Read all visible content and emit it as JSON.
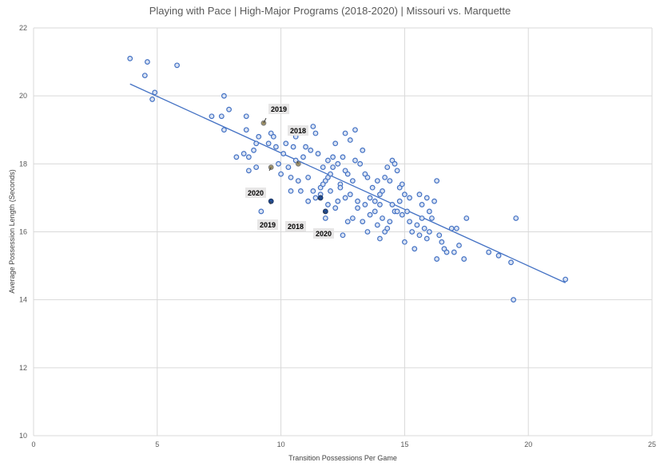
{
  "chart_data": {
    "type": "scatter",
    "title": "Playing with Pace | High-Major Programs (2018-2020) | Missouri vs. Marquette",
    "xlabel": "Transition Possessions Per Game",
    "ylabel": "Average Possession Length (Seconds)",
    "xlim": [
      0,
      25
    ],
    "ylim": [
      10,
      22
    ],
    "x_ticks": [
      "0",
      "5",
      "10",
      "15",
      "20",
      "25"
    ],
    "y_ticks": [
      "10",
      "12",
      "14",
      "16",
      "18",
      "20",
      "22"
    ],
    "grid": "vertical and horizontal",
    "trendline": {
      "x": [
        3.9,
        21.5
      ],
      "y": [
        20.35,
        14.5
      ]
    },
    "series": [
      {
        "name": "High-Major Programs",
        "points": [
          [
            3.9,
            21.1
          ],
          [
            4.6,
            21.0
          ],
          [
            4.5,
            20.6
          ],
          [
            5.8,
            20.9
          ],
          [
            4.9,
            20.1
          ],
          [
            4.8,
            19.9
          ],
          [
            7.7,
            20.0
          ],
          [
            7.2,
            19.4
          ],
          [
            7.6,
            19.4
          ],
          [
            7.9,
            19.6
          ],
          [
            8.6,
            19.4
          ],
          [
            7.7,
            19.0
          ],
          [
            8.6,
            19.0
          ],
          [
            9.1,
            18.8
          ],
          [
            9.0,
            18.6
          ],
          [
            8.7,
            18.2
          ],
          [
            8.5,
            18.3
          ],
          [
            8.2,
            18.2
          ],
          [
            8.9,
            18.4
          ],
          [
            8.7,
            17.8
          ],
          [
            9.0,
            17.9
          ],
          [
            9.6,
            18.9
          ],
          [
            9.7,
            18.8
          ],
          [
            9.5,
            18.6
          ],
          [
            9.8,
            18.5
          ],
          [
            10.2,
            18.6
          ],
          [
            10.5,
            18.5
          ],
          [
            10.6,
            18.8
          ],
          [
            10.1,
            18.3
          ],
          [
            9.9,
            18.0
          ],
          [
            10.3,
            17.9
          ],
          [
            10.0,
            17.7
          ],
          [
            10.6,
            18.1
          ],
          [
            10.4,
            17.6
          ],
          [
            10.9,
            18.2
          ],
          [
            11.0,
            18.5
          ],
          [
            11.2,
            18.4
          ],
          [
            11.5,
            18.3
          ],
          [
            11.7,
            17.9
          ],
          [
            11.4,
            18.9
          ],
          [
            11.3,
            19.1
          ],
          [
            11.9,
            18.1
          ],
          [
            12.1,
            18.2
          ],
          [
            12.3,
            18.0
          ],
          [
            12.0,
            17.7
          ],
          [
            11.8,
            17.5
          ],
          [
            11.6,
            17.3
          ],
          [
            11.1,
            17.6
          ],
          [
            11.3,
            17.2
          ],
          [
            11.4,
            17.0
          ],
          [
            11.6,
            17.1
          ],
          [
            11.9,
            16.8
          ],
          [
            12.2,
            16.7
          ],
          [
            12.6,
            17.0
          ],
          [
            12.4,
            17.4
          ],
          [
            12.7,
            17.7
          ],
          [
            12.9,
            17.5
          ],
          [
            13.0,
            18.1
          ],
          [
            13.2,
            18.0
          ],
          [
            12.8,
            18.7
          ],
          [
            12.6,
            18.9
          ],
          [
            13.0,
            19.0
          ],
          [
            12.2,
            18.6
          ],
          [
            13.3,
            18.4
          ],
          [
            13.5,
            17.6
          ],
          [
            13.7,
            17.3
          ],
          [
            13.6,
            17.0
          ],
          [
            13.4,
            16.8
          ],
          [
            13.1,
            16.7
          ],
          [
            12.9,
            16.4
          ],
          [
            13.3,
            16.3
          ],
          [
            13.5,
            16.0
          ],
          [
            13.8,
            16.6
          ],
          [
            14.0,
            16.8
          ],
          [
            14.1,
            17.2
          ],
          [
            14.2,
            17.6
          ],
          [
            14.3,
            17.9
          ],
          [
            14.5,
            18.1
          ],
          [
            14.6,
            18.0
          ],
          [
            14.7,
            17.8
          ],
          [
            14.4,
            17.5
          ],
          [
            14.8,
            17.3
          ],
          [
            14.9,
            17.4
          ],
          [
            15.0,
            17.1
          ],
          [
            14.8,
            16.9
          ],
          [
            14.6,
            16.6
          ],
          [
            14.4,
            16.3
          ],
          [
            14.2,
            16.0
          ],
          [
            14.0,
            15.8
          ],
          [
            14.3,
            16.1
          ],
          [
            14.9,
            16.5
          ],
          [
            15.1,
            16.6
          ],
          [
            15.2,
            16.3
          ],
          [
            15.3,
            16.0
          ],
          [
            15.5,
            16.2
          ],
          [
            15.7,
            16.4
          ],
          [
            15.8,
            16.1
          ],
          [
            15.6,
            15.9
          ],
          [
            15.4,
            15.5
          ],
          [
            15.9,
            15.8
          ],
          [
            16.0,
            16.6
          ],
          [
            16.2,
            16.9
          ],
          [
            16.3,
            17.5
          ],
          [
            16.1,
            16.4
          ],
          [
            15.9,
            17.0
          ],
          [
            15.6,
            17.1
          ],
          [
            16.4,
            15.9
          ],
          [
            16.5,
            15.7
          ],
          [
            16.7,
            15.4
          ],
          [
            16.9,
            16.1
          ],
          [
            17.0,
            15.4
          ],
          [
            17.2,
            15.6
          ],
          [
            17.4,
            15.2
          ],
          [
            17.5,
            16.4
          ],
          [
            16.3,
            15.2
          ],
          [
            18.4,
            15.4
          ],
          [
            18.8,
            15.3
          ],
          [
            19.3,
            15.1
          ],
          [
            19.5,
            16.4
          ],
          [
            19.4,
            14.0
          ],
          [
            21.5,
            14.6
          ],
          [
            12.5,
            18.2
          ],
          [
            12.1,
            17.9
          ],
          [
            11.9,
            17.6
          ],
          [
            12.4,
            17.3
          ],
          [
            12.8,
            17.1
          ],
          [
            13.4,
            17.7
          ],
          [
            13.9,
            17.5
          ],
          [
            14.0,
            17.1
          ],
          [
            13.8,
            16.9
          ],
          [
            13.6,
            16.5
          ],
          [
            12.7,
            16.3
          ],
          [
            12.5,
            15.9
          ],
          [
            11.8,
            16.4
          ],
          [
            12.3,
            16.9
          ],
          [
            11.7,
            17.4
          ],
          [
            12.0,
            17.2
          ],
          [
            14.5,
            16.8
          ],
          [
            14.7,
            16.6
          ],
          [
            15.0,
            15.7
          ],
          [
            14.1,
            16.4
          ],
          [
            13.9,
            16.2
          ],
          [
            10.8,
            17.2
          ],
          [
            10.7,
            17.5
          ],
          [
            10.4,
            17.2
          ],
          [
            9.2,
            16.6
          ],
          [
            11.1,
            16.9
          ],
          [
            12.6,
            17.8
          ],
          [
            13.1,
            16.9
          ],
          [
            15.2,
            17.0
          ],
          [
            16.0,
            16.0
          ],
          [
            15.7,
            16.8
          ],
          [
            16.6,
            15.5
          ],
          [
            17.1,
            16.1
          ]
        ]
      },
      {
        "name": "Missouri",
        "points": [
          [
            9.3,
            19.2
          ],
          [
            10.7,
            18.0
          ],
          [
            9.6,
            17.9
          ]
        ]
      },
      {
        "name": "Marquette",
        "points": [
          [
            9.6,
            16.9
          ],
          [
            11.6,
            17.0
          ],
          [
            11.8,
            16.6
          ]
        ]
      }
    ],
    "annotations": [
      {
        "label": "2019",
        "x": 9.3,
        "y": 19.2
      },
      {
        "label": "2018",
        "x": 10.7,
        "y": 18.0
      },
      {
        "label": "2020",
        "x": 9.6,
        "y": 17.9
      },
      {
        "label": "2019",
        "x": 9.6,
        "y": 16.9
      },
      {
        "label": "2018",
        "x": 11.6,
        "y": 17.0
      },
      {
        "label": "2020",
        "x": 11.8,
        "y": 16.6
      }
    ],
    "colors": {
      "point_fill": "#dae3f3",
      "point_stroke": "#4472c4",
      "missouri": "#a49566",
      "marquette": "#1f4e9a",
      "trendline": "#4472c4"
    }
  }
}
